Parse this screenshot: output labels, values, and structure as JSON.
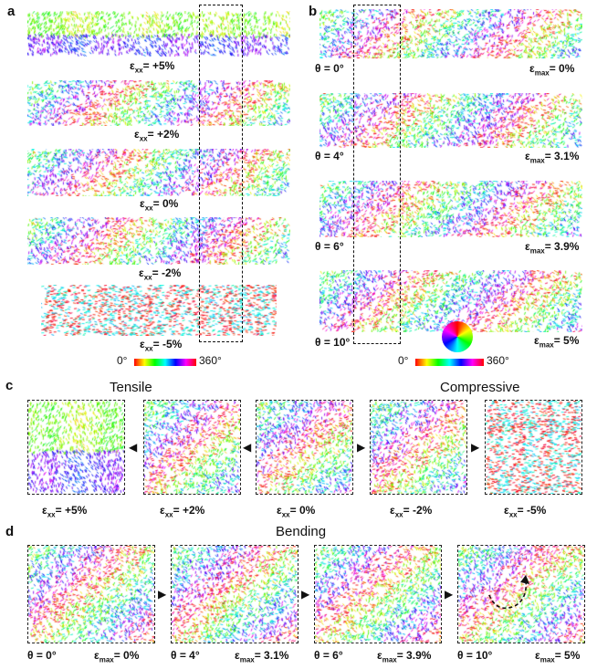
{
  "panels": {
    "a": {
      "label": "a",
      "rows": [
        {
          "caption": "ε",
          "sub": "xx",
          "value": "= +5%"
        },
        {
          "caption": "ε",
          "sub": "xx",
          "value": "= +2%"
        },
        {
          "caption": "ε",
          "sub": "xx",
          "value": "= 0%"
        },
        {
          "caption": "ε",
          "sub": "xx",
          "value": "= -2%"
        },
        {
          "caption": "ε",
          "sub": "xx",
          "value": "= -5%"
        }
      ],
      "colorbar_min": "0°",
      "colorbar_max": "360°"
    },
    "b": {
      "label": "b",
      "rows": [
        {
          "theta": "θ = 0°",
          "eps": "ε",
          "sub": "max",
          "value": "= 0%"
        },
        {
          "theta": "θ = 4°",
          "eps": "ε",
          "sub": "max",
          "value": "= 3.1%"
        },
        {
          "theta": "θ = 6°",
          "eps": "ε",
          "sub": "max",
          "value": "= 3.9%"
        },
        {
          "theta": "θ = 10°",
          "eps": "ε",
          "sub": "max",
          "value": "= 5%"
        }
      ],
      "colorbar_min": "0°",
      "colorbar_max": "360°"
    },
    "c": {
      "label": "c",
      "title_left": "Tensile",
      "title_right": "Compressive",
      "items": [
        {
          "eps": "ε",
          "sub": "xx",
          "value": "= +5%"
        },
        {
          "eps": "ε",
          "sub": "xx",
          "value": "= +2%"
        },
        {
          "eps": "ε",
          "sub": "xx",
          "value": "= 0%"
        },
        {
          "eps": "ε",
          "sub": "xx",
          "value": "= -2%"
        },
        {
          "eps": "ε",
          "sub": "xx",
          "value": "= -5%"
        }
      ]
    },
    "d": {
      "label": "d",
      "title": "Bending",
      "items": [
        {
          "theta": "θ = 0°",
          "eps": "ε",
          "sub": "max",
          "value": "= 0%"
        },
        {
          "theta": "θ = 4°",
          "eps": "ε",
          "sub": "max",
          "value": "= 3.1%"
        },
        {
          "theta": "θ = 6°",
          "eps": "ε",
          "sub": "max",
          "value": "= 3.9%"
        },
        {
          "theta": "θ = 10°",
          "eps": "ε",
          "sub": "max",
          "value": "= 5%"
        }
      ]
    }
  },
  "palette": {
    "hue_start": "#ff0000",
    "hue_end": "#ff0000",
    "frame": "#111111"
  }
}
